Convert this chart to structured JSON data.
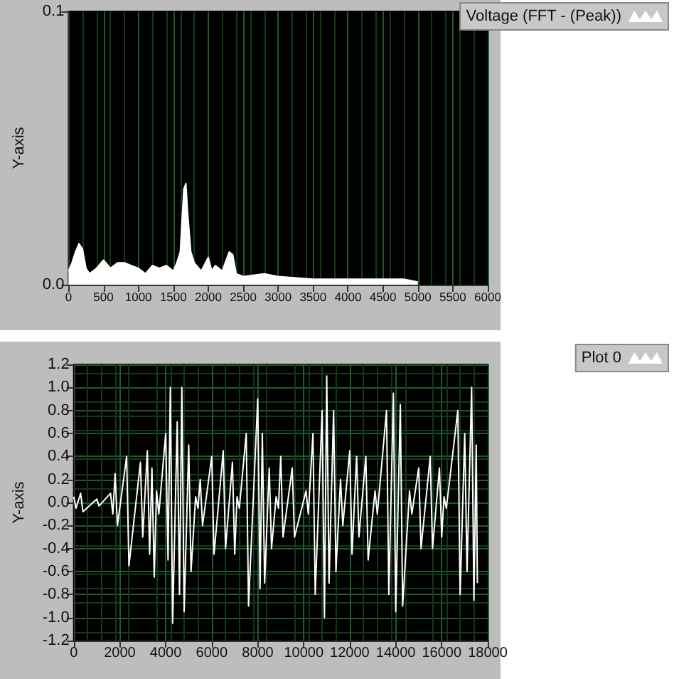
{
  "chart_data": [
    {
      "type": "area",
      "ylabel": "Y-axis",
      "legend": "top right",
      "grid": "x",
      "xlim": [
        0,
        6000
      ],
      "xticks": [
        0,
        500,
        1000,
        1500,
        2000,
        2500,
        3000,
        3500,
        4000,
        4500,
        5000,
        5500,
        6000
      ],
      "ylim": [
        0,
        0.1
      ],
      "yticks": [
        {
          "value": 0,
          "label": "0.0"
        },
        {
          "value": 0.1,
          "label": "0.1"
        }
      ],
      "series": [
        {
          "name": "Voltage (FFT - (Peak))",
          "color": "#ffffff",
          "x": [
            0,
            50,
            100,
            150,
            200,
            250,
            300,
            400,
            500,
            600,
            700,
            800,
            900,
            1000,
            1100,
            1200,
            1300,
            1400,
            1500,
            1550,
            1600,
            1650,
            1680,
            1700,
            1750,
            1800,
            1900,
            2000,
            2050,
            2100,
            2200,
            2300,
            2350,
            2400,
            2500,
            2800,
            3000,
            3500,
            4000,
            4500,
            4800,
            5000
          ],
          "values": [
            0.005,
            0.008,
            0.012,
            0.015,
            0.013,
            0.006,
            0.004,
            0.006,
            0.009,
            0.006,
            0.008,
            0.008,
            0.007,
            0.006,
            0.004,
            0.007,
            0.006,
            0.007,
            0.005,
            0.008,
            0.012,
            0.035,
            0.037,
            0.028,
            0.012,
            0.008,
            0.005,
            0.01,
            0.005,
            0.007,
            0.005,
            0.012,
            0.011,
            0.004,
            0.003,
            0.004,
            0.003,
            0.002,
            0.002,
            0.002,
            0.002,
            0.001
          ]
        }
      ]
    },
    {
      "type": "line",
      "ylabel": "Y-axis",
      "legend": "top right",
      "grid": true,
      "xlim": [
        0,
        18000
      ],
      "xticks": [
        0,
        2000,
        4000,
        6000,
        8000,
        10000,
        12000,
        14000,
        16000,
        18000
      ],
      "ylim": [
        -1.2,
        1.2
      ],
      "yticks": [
        {
          "value": -1.2,
          "label": "-1.2"
        },
        {
          "value": -1,
          "label": "-1.0"
        },
        {
          "value": -0.8,
          "label": "-0.8"
        },
        {
          "value": -0.6,
          "label": "-0.6"
        },
        {
          "value": -0.4,
          "label": "-0.4"
        },
        {
          "value": -0.2,
          "label": "-0.2"
        },
        {
          "value": 0,
          "label": "0.0"
        },
        {
          "value": 0.2,
          "label": "0.2"
        },
        {
          "value": 0.4,
          "label": "0.4"
        },
        {
          "value": 0.6,
          "label": "0.6"
        },
        {
          "value": 0.8,
          "label": "0.8"
        },
        {
          "value": 1,
          "label": "1.0"
        },
        {
          "value": 1.2,
          "label": "1.2"
        }
      ],
      "series": [
        {
          "name": "Plot 0",
          "color": "#ffffff",
          "x": [
            0,
            100,
            300,
            400,
            1000,
            1100,
            1600,
            1700,
            1800,
            1900,
            2300,
            2400,
            2900,
            3000,
            3200,
            3300,
            3400,
            3500,
            3600,
            3700,
            4000,
            4100,
            4200,
            4300,
            4500,
            4600,
            4700,
            4800,
            5000,
            5100,
            5300,
            5400,
            5500,
            5600,
            6000,
            6100,
            6500,
            6600,
            6900,
            7000,
            7100,
            7200,
            7500,
            7600,
            8000,
            8100,
            8200,
            8300,
            8500,
            8600,
            8800,
            8900,
            9000,
            9100,
            9500,
            9600,
            10100,
            10200,
            10400,
            10500,
            10800,
            10900,
            11000,
            11100,
            11300,
            11400,
            11600,
            11700,
            12000,
            12100,
            12300,
            12400,
            12700,
            12800,
            13100,
            13200,
            13600,
            13700,
            13900,
            14000,
            14200,
            14300,
            14600,
            14700,
            15000,
            15100,
            15500,
            15600,
            15900,
            16000,
            16100,
            16200,
            16700,
            16800,
            17000,
            17100,
            17300,
            17400,
            17500,
            17550
          ],
          "values": [
            0.05,
            -0.05,
            0.08,
            -0.08,
            0.03,
            -0.03,
            0.08,
            -0.1,
            0.25,
            -0.2,
            0.4,
            -0.55,
            0.35,
            -0.3,
            0.45,
            -0.45,
            0.3,
            -0.65,
            0.1,
            -0.1,
            0.6,
            -0.5,
            1.0,
            -1.05,
            0.7,
            -0.8,
            1.0,
            -0.95,
            0.5,
            -0.6,
            0.05,
            -0.05,
            0.2,
            -0.2,
            0.4,
            -0.45,
            0.45,
            -0.4,
            0.35,
            -0.45,
            0.05,
            -0.05,
            0.6,
            -0.9,
            0.9,
            -0.75,
            0.6,
            -0.7,
            0.3,
            -0.4,
            0.05,
            -0.05,
            0.4,
            -0.3,
            0.3,
            -0.3,
            0.1,
            -0.1,
            0.6,
            -0.8,
            0.8,
            -1.0,
            1.1,
            -0.7,
            0.8,
            -0.6,
            0.2,
            -0.2,
            0.45,
            -0.45,
            0.4,
            -0.3,
            0.4,
            -0.5,
            0.1,
            -0.1,
            0.8,
            -0.8,
            0.95,
            -0.95,
            0.85,
            -0.9,
            0.1,
            -0.1,
            0.3,
            -0.4,
            0.4,
            -0.4,
            0.3,
            -0.3,
            0.05,
            -0.05,
            0.8,
            -0.8,
            0.6,
            -0.6,
            1.0,
            -0.85,
            0.5,
            -0.7
          ]
        }
      ]
    }
  ]
}
